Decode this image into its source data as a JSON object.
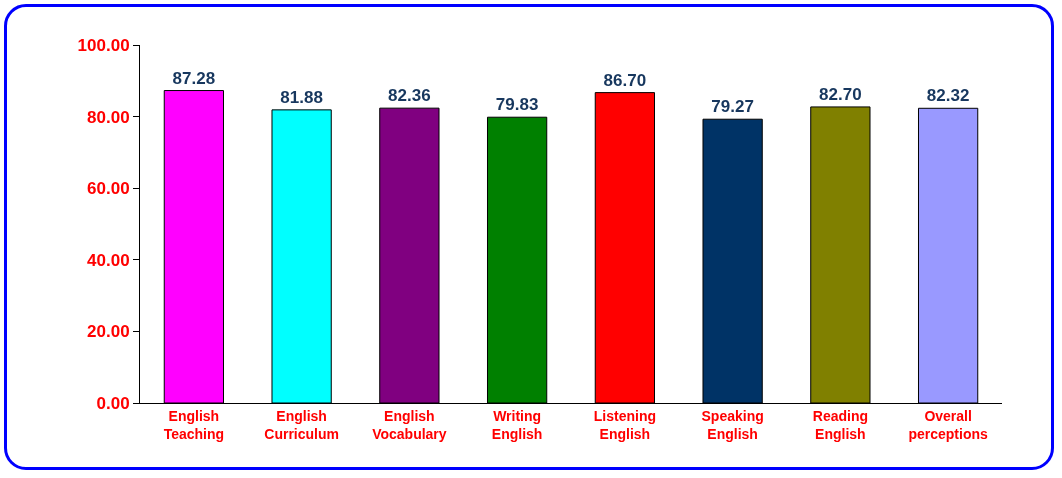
{
  "chart_data": {
    "type": "bar",
    "categories": [
      "English Teaching",
      "English Curriculum",
      "English Vocabulary",
      "Writing English",
      "Listening English",
      "Speaking English",
      "Reading English",
      "Overall perceptions"
    ],
    "values": [
      87.28,
      81.88,
      82.36,
      79.83,
      86.7,
      79.27,
      82.7,
      82.32
    ],
    "colors": [
      "#ff00ff",
      "#00ffff",
      "#800080",
      "#008000",
      "#ff0000",
      "#003366",
      "#808000",
      "#9999ff"
    ],
    "value_labels": [
      "87.28",
      "81.88",
      "82.36",
      "79.83",
      "86.70",
      "79.27",
      "82.70",
      "82.32"
    ],
    "ylim": [
      0,
      100
    ],
    "yticks": [
      {
        "value": 0,
        "label": "0.00"
      },
      {
        "value": 20,
        "label": "20.00"
      },
      {
        "value": 40,
        "label": "40.00"
      },
      {
        "value": 60,
        "label": "60.00"
      },
      {
        "value": 80,
        "label": "80.00"
      },
      {
        "value": 100,
        "label": "100.00"
      }
    ],
    "grid": false
  }
}
